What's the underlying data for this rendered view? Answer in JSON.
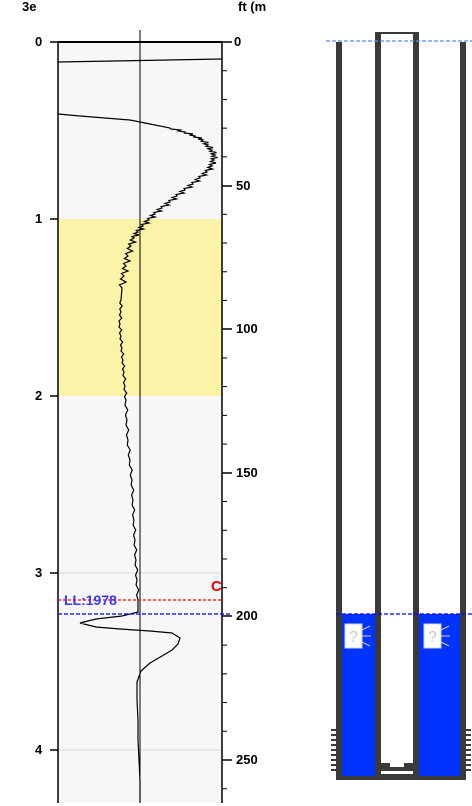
{
  "left_axis": {
    "label_partial": "3e",
    "ticks": [
      "0",
      "1",
      "2",
      "3",
      "4"
    ]
  },
  "right_axis": {
    "label_partial": "ft (m",
    "ticks": [
      "0",
      "50",
      "100",
      "150",
      "200",
      "250"
    ]
  },
  "markers": {
    "level_label": "LL:1978",
    "red_letter": "C"
  },
  "well": {
    "unknown_glyph": "?",
    "water_color": "#0033ff",
    "casing_color": "#3a3a3a"
  },
  "colors": {
    "highlight_band": "#fbf3a8",
    "panel_bg": "#f7f7f7",
    "level_blue": "#0000ff",
    "level_red": "#ff0000"
  }
}
